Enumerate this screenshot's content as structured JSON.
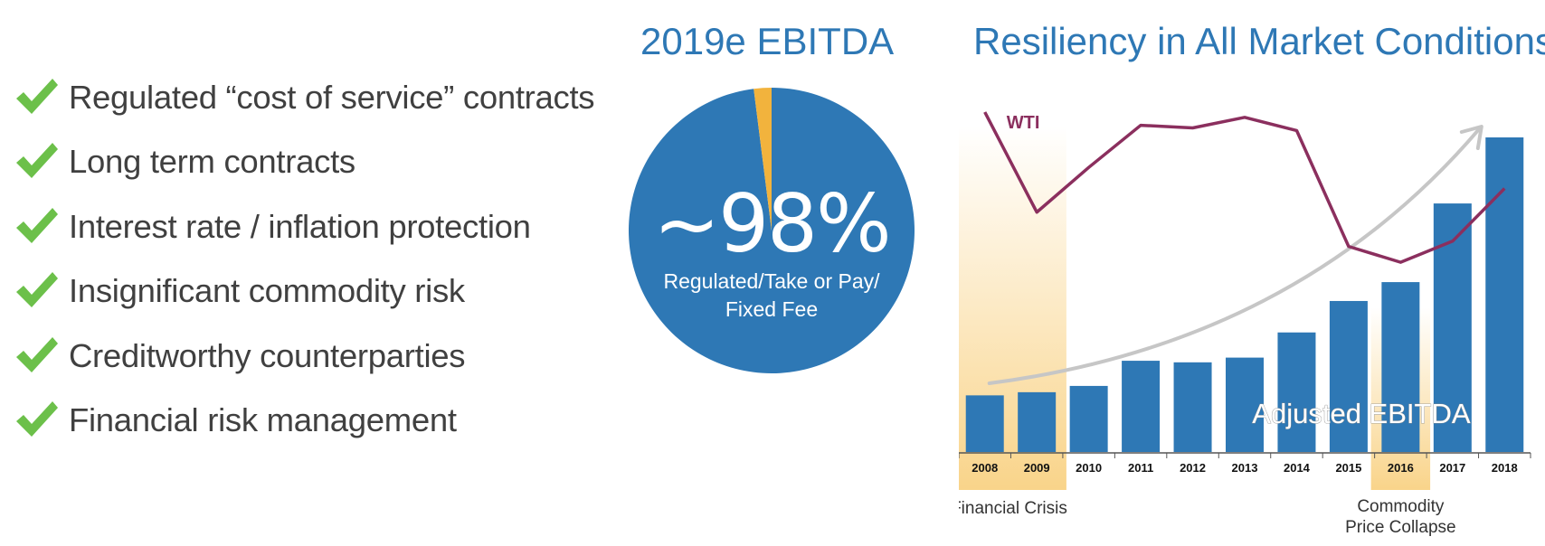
{
  "checklist": [
    "Regulated “cost of service” contracts",
    "Long term contracts",
    "Interest rate / inflation protection",
    "Insignificant commodity risk",
    "Creditworthy counterparties",
    "Financial risk management"
  ],
  "colors": {
    "check": "#6cc04a",
    "blue": "#2e78b5",
    "gold": "#f2b33d",
    "wti": "#8b2f5e",
    "highlight": "#f9d48a",
    "trend": "#c6c6c6"
  },
  "pie": {
    "title": "2019e EBITDA",
    "big_label": "~98%",
    "sub_label_line1": "Regulated/Take or Pay/",
    "sub_label_line2": "Fixed Fee"
  },
  "chart_data": [
    {
      "type": "pie",
      "title": "2019e EBITDA",
      "slices": [
        {
          "label": "Regulated/Take or Pay/ Fixed Fee",
          "value": 98
        },
        {
          "label": "",
          "value": 2
        }
      ]
    },
    {
      "type": "bar",
      "title": "Resiliency in All Market Conditions",
      "categories": [
        "2008",
        "2009",
        "2010",
        "2011",
        "2012",
        "2013",
        "2014",
        "2015",
        "2016",
        "2017",
        "2018"
      ],
      "series": [
        {
          "name": "Adjusted EBITDA",
          "type": "bar",
          "values": [
            18,
            19,
            21,
            29,
            28.5,
            30,
            38,
            48,
            54,
            79,
            100
          ]
        },
        {
          "name": "WTI",
          "type": "line",
          "values": [
            100,
            62,
            79,
            95,
            94,
            98,
            93,
            49,
            43,
            51,
            71
          ]
        }
      ],
      "ylim": [
        0,
        100
      ],
      "annotations": [
        {
          "text": "Financial Crisis",
          "categories": [
            "2008",
            "2009"
          ]
        },
        {
          "text_line1": "Commodity",
          "text_line2": "Price Collapse",
          "categories": [
            "2016"
          ]
        }
      ],
      "grid": false
    }
  ]
}
